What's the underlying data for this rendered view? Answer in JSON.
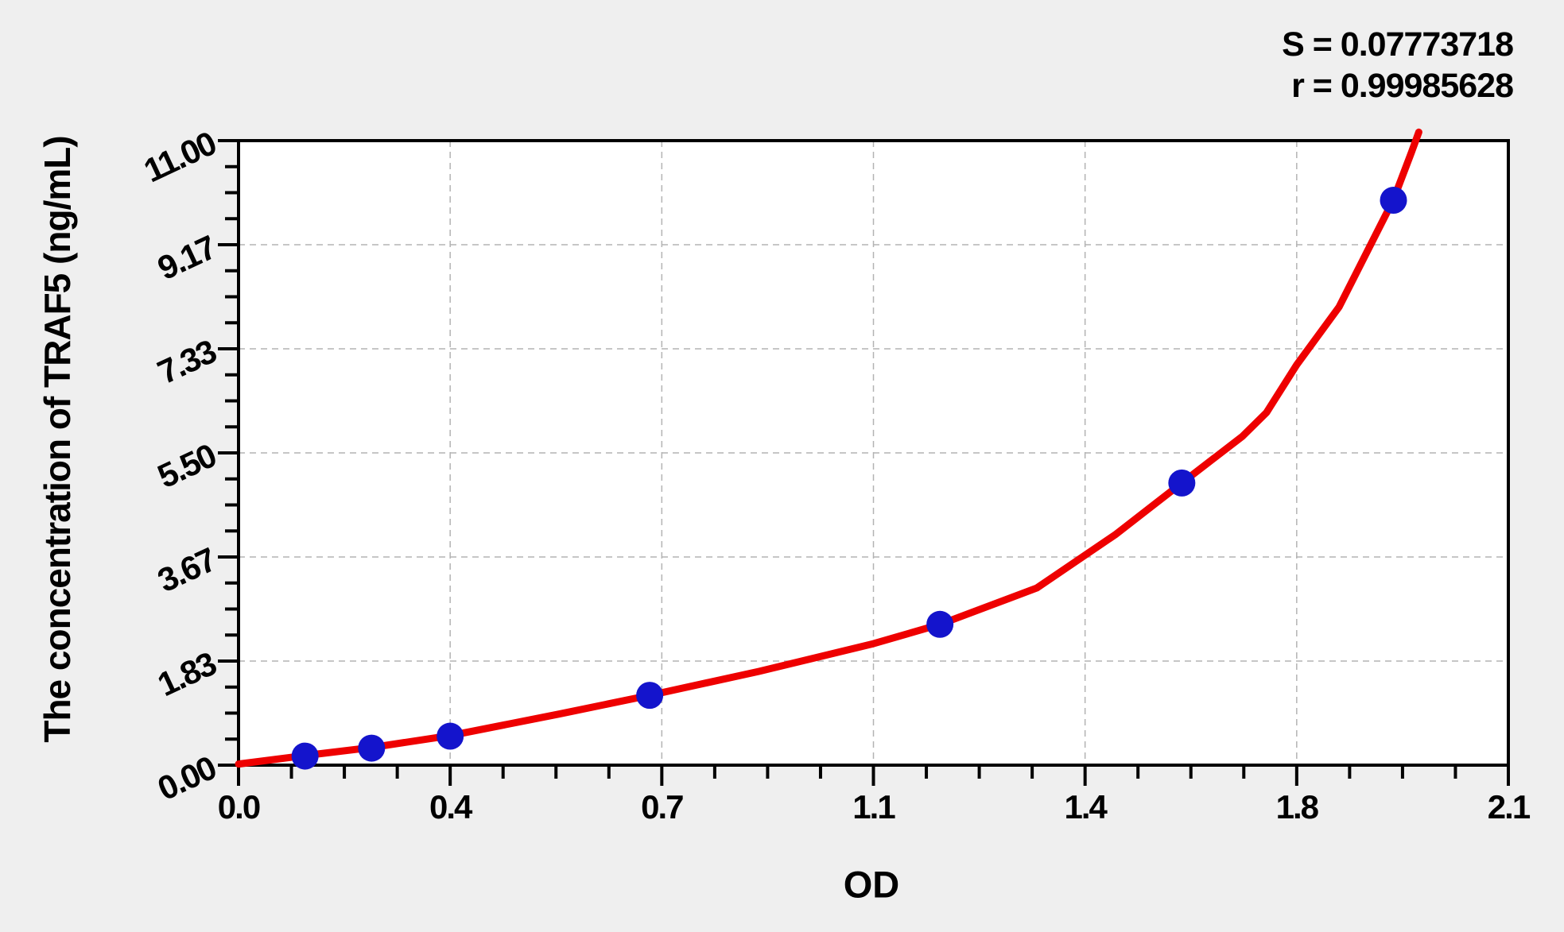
{
  "annotation": {
    "s_line": "S = 0.07773718",
    "r_line": "r = 0.99985628"
  },
  "chart_data": {
    "type": "scatter",
    "title": "",
    "xlabel": "OD",
    "ylabel": "The concentration of TRAF5 (ng/mL)",
    "xlim": [
      0,
      2.1
    ],
    "ylim": [
      0,
      11
    ],
    "x_major_values": [
      0,
      0.35,
      0.7,
      1.05,
      1.4,
      1.75,
      2.1
    ],
    "x_major_labels": [
      "0.0",
      "0.4",
      "0.7",
      "1.1",
      "1.4",
      "1.8",
      "2.1"
    ],
    "y_major_values": [
      0,
      1.8333,
      3.6667,
      5.5,
      7.3333,
      9.1667,
      11
    ],
    "y_major_labels": [
      "0.00",
      "1.83",
      "3.67",
      "5.50",
      "7.33",
      "9.17",
      "11.00"
    ],
    "minor_divisions_per_major": 4,
    "grid": "dashed-major",
    "legend": "none",
    "stats": {
      "S": 0.07773718,
      "r": 0.99985628
    },
    "series": [
      {
        "name": "standards",
        "style": "points",
        "points_od_conc": [
          [
            0.11,
            0.16
          ],
          [
            0.22,
            0.3
          ],
          [
            0.35,
            0.51
          ],
          [
            0.68,
            1.23
          ],
          [
            1.16,
            2.48
          ],
          [
            1.56,
            4.97
          ],
          [
            1.91,
            9.95
          ]
        ]
      },
      {
        "name": "fit-curve",
        "style": "line",
        "points_od_conc": [
          [
            0.0,
            0.02
          ],
          [
            0.11,
            0.17
          ],
          [
            0.22,
            0.31
          ],
          [
            0.35,
            0.52
          ],
          [
            0.53,
            0.9
          ],
          [
            0.68,
            1.23
          ],
          [
            0.86,
            1.65
          ],
          [
            1.05,
            2.14
          ],
          [
            1.16,
            2.48
          ],
          [
            1.32,
            3.12
          ],
          [
            1.45,
            4.06
          ],
          [
            1.56,
            4.97
          ],
          [
            1.66,
            5.79
          ],
          [
            1.7,
            6.21
          ],
          [
            1.75,
            7.05
          ],
          [
            1.82,
            8.07
          ],
          [
            1.91,
            9.96
          ],
          [
            1.94,
            10.8
          ],
          [
            1.952,
            11.15
          ]
        ]
      }
    ]
  },
  "colors": {
    "background": "#efefef",
    "plot_background": "#ffffff",
    "frame": "#000000",
    "grid": "#b3b3b3",
    "curve": "#ee0000",
    "point": "#1414cc",
    "text": "#000000"
  }
}
